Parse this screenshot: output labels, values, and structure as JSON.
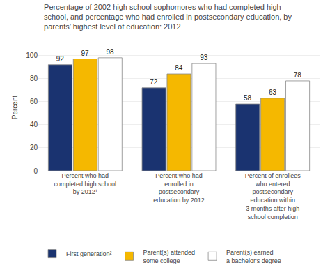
{
  "chart_data": {
    "type": "bar",
    "title": "Percentage of 2002 high school sophomores who had completed high\nschool, and percentage who had enrolled in postsecondary education, by\nparents’ highest level of education: 2012",
    "ylabel": "Percent",
    "categories": [
      "Percent who had\ncompleted high school\nby 2012¹",
      "Percent who had\nenrolled in\npostsecondary\neducation by 2012",
      "Percent of enrollees\nwho entered\npostsecondary\neducation within\n3 months after high\nschool completion"
    ],
    "series": [
      {
        "name": "First generation²",
        "color": "#1a3370",
        "values": [
          92,
          72,
          58
        ]
      },
      {
        "name": "Parent(s) attended\nsome college",
        "color": "#f5b800",
        "values": [
          97,
          84,
          63
        ]
      },
      {
        "name": "Parent(s) earned\na bachelor's degree",
        "color": "#ffffff",
        "values": [
          98,
          93,
          78
        ]
      }
    ],
    "ylim": [
      0,
      110
    ],
    "yticks": [
      0,
      20,
      40,
      60,
      80,
      100
    ],
    "grid": true,
    "data_labels": true
  }
}
